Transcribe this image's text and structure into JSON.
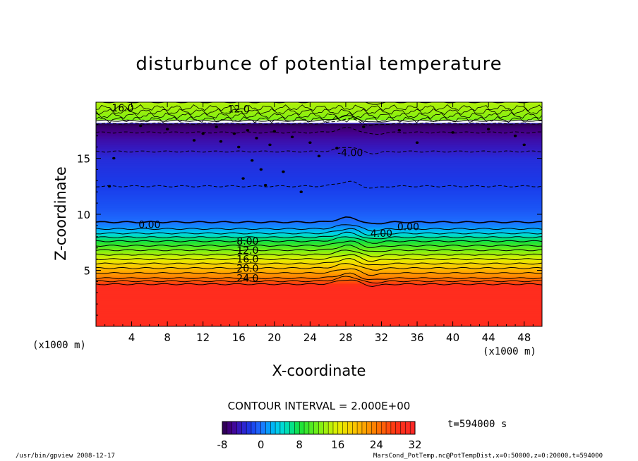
{
  "chart_data": {
    "type": "heatmap",
    "title": "disturbunce of potential temperature",
    "xlabel": "X-coordinate",
    "ylabel": "Z-coordinate",
    "x_unit_left": "(x1000 m)",
    "x_unit_right": "(x1000 m)",
    "xlim": [
      0,
      50
    ],
    "ylim": [
      0,
      20
    ],
    "x_ticks": [
      4,
      8,
      12,
      16,
      20,
      24,
      28,
      32,
      36,
      40,
      44,
      48
    ],
    "x_tick_labels": [
      "4",
      "8",
      "12",
      "16",
      "20",
      "24",
      "28",
      "32",
      "36",
      "40",
      "44",
      "48"
    ],
    "y_ticks": [
      5,
      10,
      15
    ],
    "y_tick_labels": [
      "5",
      "10",
      "15"
    ],
    "contour_interval": "CONTOUR INTERVAL = 2.000E+00",
    "colorbar": {
      "min": -8,
      "max": 32,
      "tick_values": [
        -8,
        0,
        8,
        16,
        24,
        32
      ],
      "tick_labels": [
        "-8",
        "0",
        "8",
        "16",
        "24",
        "32"
      ],
      "colors": [
        "#2a0040",
        "#3a0080",
        "#2020c0",
        "#1a50e8",
        "#1e90ff",
        "#00c8f0",
        "#00e0a0",
        "#20e020",
        "#90f020",
        "#e8f000",
        "#ffc000",
        "#ff8000",
        "#ff4000",
        "#ff1a1a",
        "#ff3838"
      ]
    },
    "contour_labels": [
      {
        "text": "16.0",
        "x": 3.0,
        "z": 19.5
      },
      {
        "text": "12.0",
        "x": 16.0,
        "z": 19.4
      },
      {
        "text": "-4.00",
        "x": 28.5,
        "z": 15.5
      },
      {
        "text": "0.00",
        "x": 6.0,
        "z": 9.1
      },
      {
        "text": "0.00",
        "x": 35.0,
        "z": 8.9
      },
      {
        "text": "4.00",
        "x": 32.0,
        "z": 8.3
      },
      {
        "text": "8.00",
        "x": 17.0,
        "z": 7.6
      },
      {
        "text": "12.0",
        "x": 17.0,
        "z": 6.8
      },
      {
        "text": "16.0",
        "x": 17.0,
        "z": 6.0
      },
      {
        "text": "20.0",
        "x": 17.0,
        "z": 5.2
      },
      {
        "text": "24.0",
        "x": 17.0,
        "z": 4.3
      }
    ],
    "time_label": "t=594000 s",
    "footer_left": "/usr/bin/gpview   2008-12-17",
    "footer_right": "MarsCond_PotTemp.nc@PotTempDist,x=0:50000,z=0:20000,t=594000"
  }
}
